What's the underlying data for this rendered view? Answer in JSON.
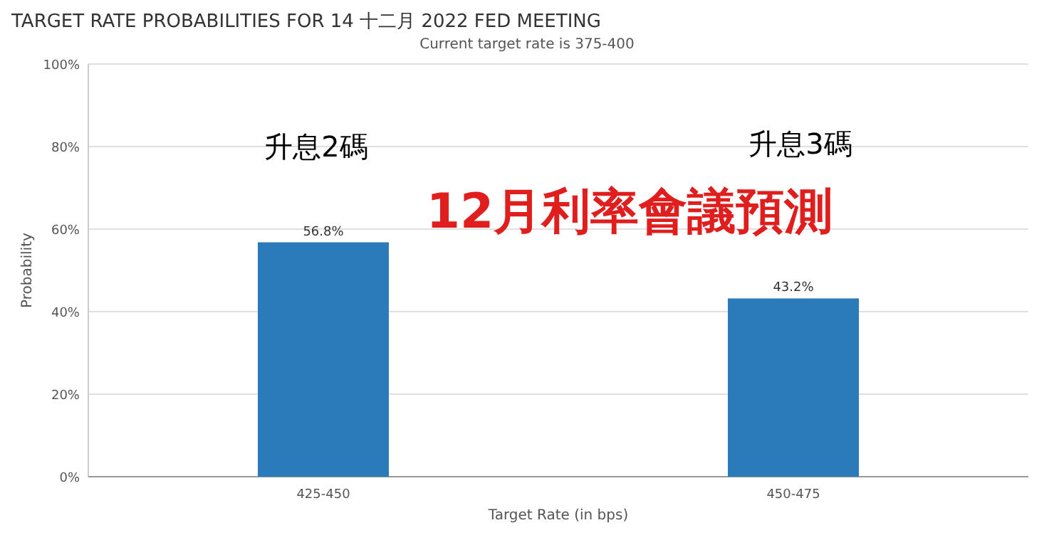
{
  "chart_data": {
    "type": "bar",
    "title": "TARGET RATE PROBABILITIES FOR 14 十二月 2022 FED MEETING",
    "subtitle": "Current target rate is 375-400",
    "xlabel": "Target Rate (in bps)",
    "ylabel": "Probability",
    "categories": [
      "425-450",
      "450-475"
    ],
    "values": [
      56.8,
      43.2
    ],
    "value_labels": [
      "56.8%",
      "43.2%"
    ],
    "color": "#2b7bba",
    "ylim": [
      0,
      100
    ],
    "yticks": [
      {
        "value": 0,
        "label": "0%"
      },
      {
        "value": 20,
        "label": "20%"
      },
      {
        "value": 40,
        "label": "40%"
      },
      {
        "value": 60,
        "label": "60%"
      },
      {
        "value": 80,
        "label": "80%"
      },
      {
        "value": 100,
        "label": "100%"
      }
    ],
    "grid": "y",
    "annotations": [
      "升息2碼",
      "升息3碼",
      "12月利率會議預測"
    ]
  }
}
